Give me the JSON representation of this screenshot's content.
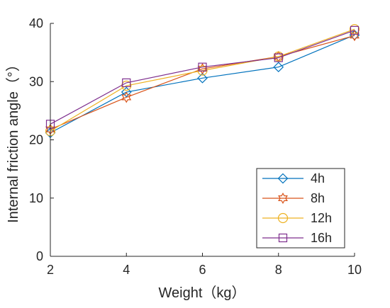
{
  "chart_data": {
    "type": "line",
    "title": "",
    "xlabel": "Weight（kg）",
    "ylabel": "Internal friction angle（°）",
    "x": [
      2,
      4,
      6,
      8,
      10
    ],
    "xlim": [
      2,
      10
    ],
    "ylim": [
      0,
      40
    ],
    "xticks": [
      "2",
      "4",
      "6",
      "8",
      "10"
    ],
    "yticks": [
      "0",
      "10",
      "20",
      "30",
      "40"
    ],
    "grid": false,
    "legend_position": "bottom-right",
    "series": [
      {
        "name": "4h",
        "marker": "diamond",
        "color": "#0072BD",
        "values": [
          21.2,
          28.2,
          30.6,
          32.5,
          38.0
        ]
      },
      {
        "name": "8h",
        "marker": "hexagram",
        "color": "#D95319",
        "values": [
          21.8,
          27.3,
          32.2,
          34.3,
          37.9
        ]
      },
      {
        "name": "12h",
        "marker": "circle",
        "color": "#EDB120",
        "values": [
          21.5,
          29.3,
          31.9,
          34.3,
          39.0
        ]
      },
      {
        "name": "16h",
        "marker": "square",
        "color": "#7E2F8E",
        "values": [
          22.7,
          29.8,
          32.5,
          34.1,
          38.8
        ]
      }
    ]
  }
}
